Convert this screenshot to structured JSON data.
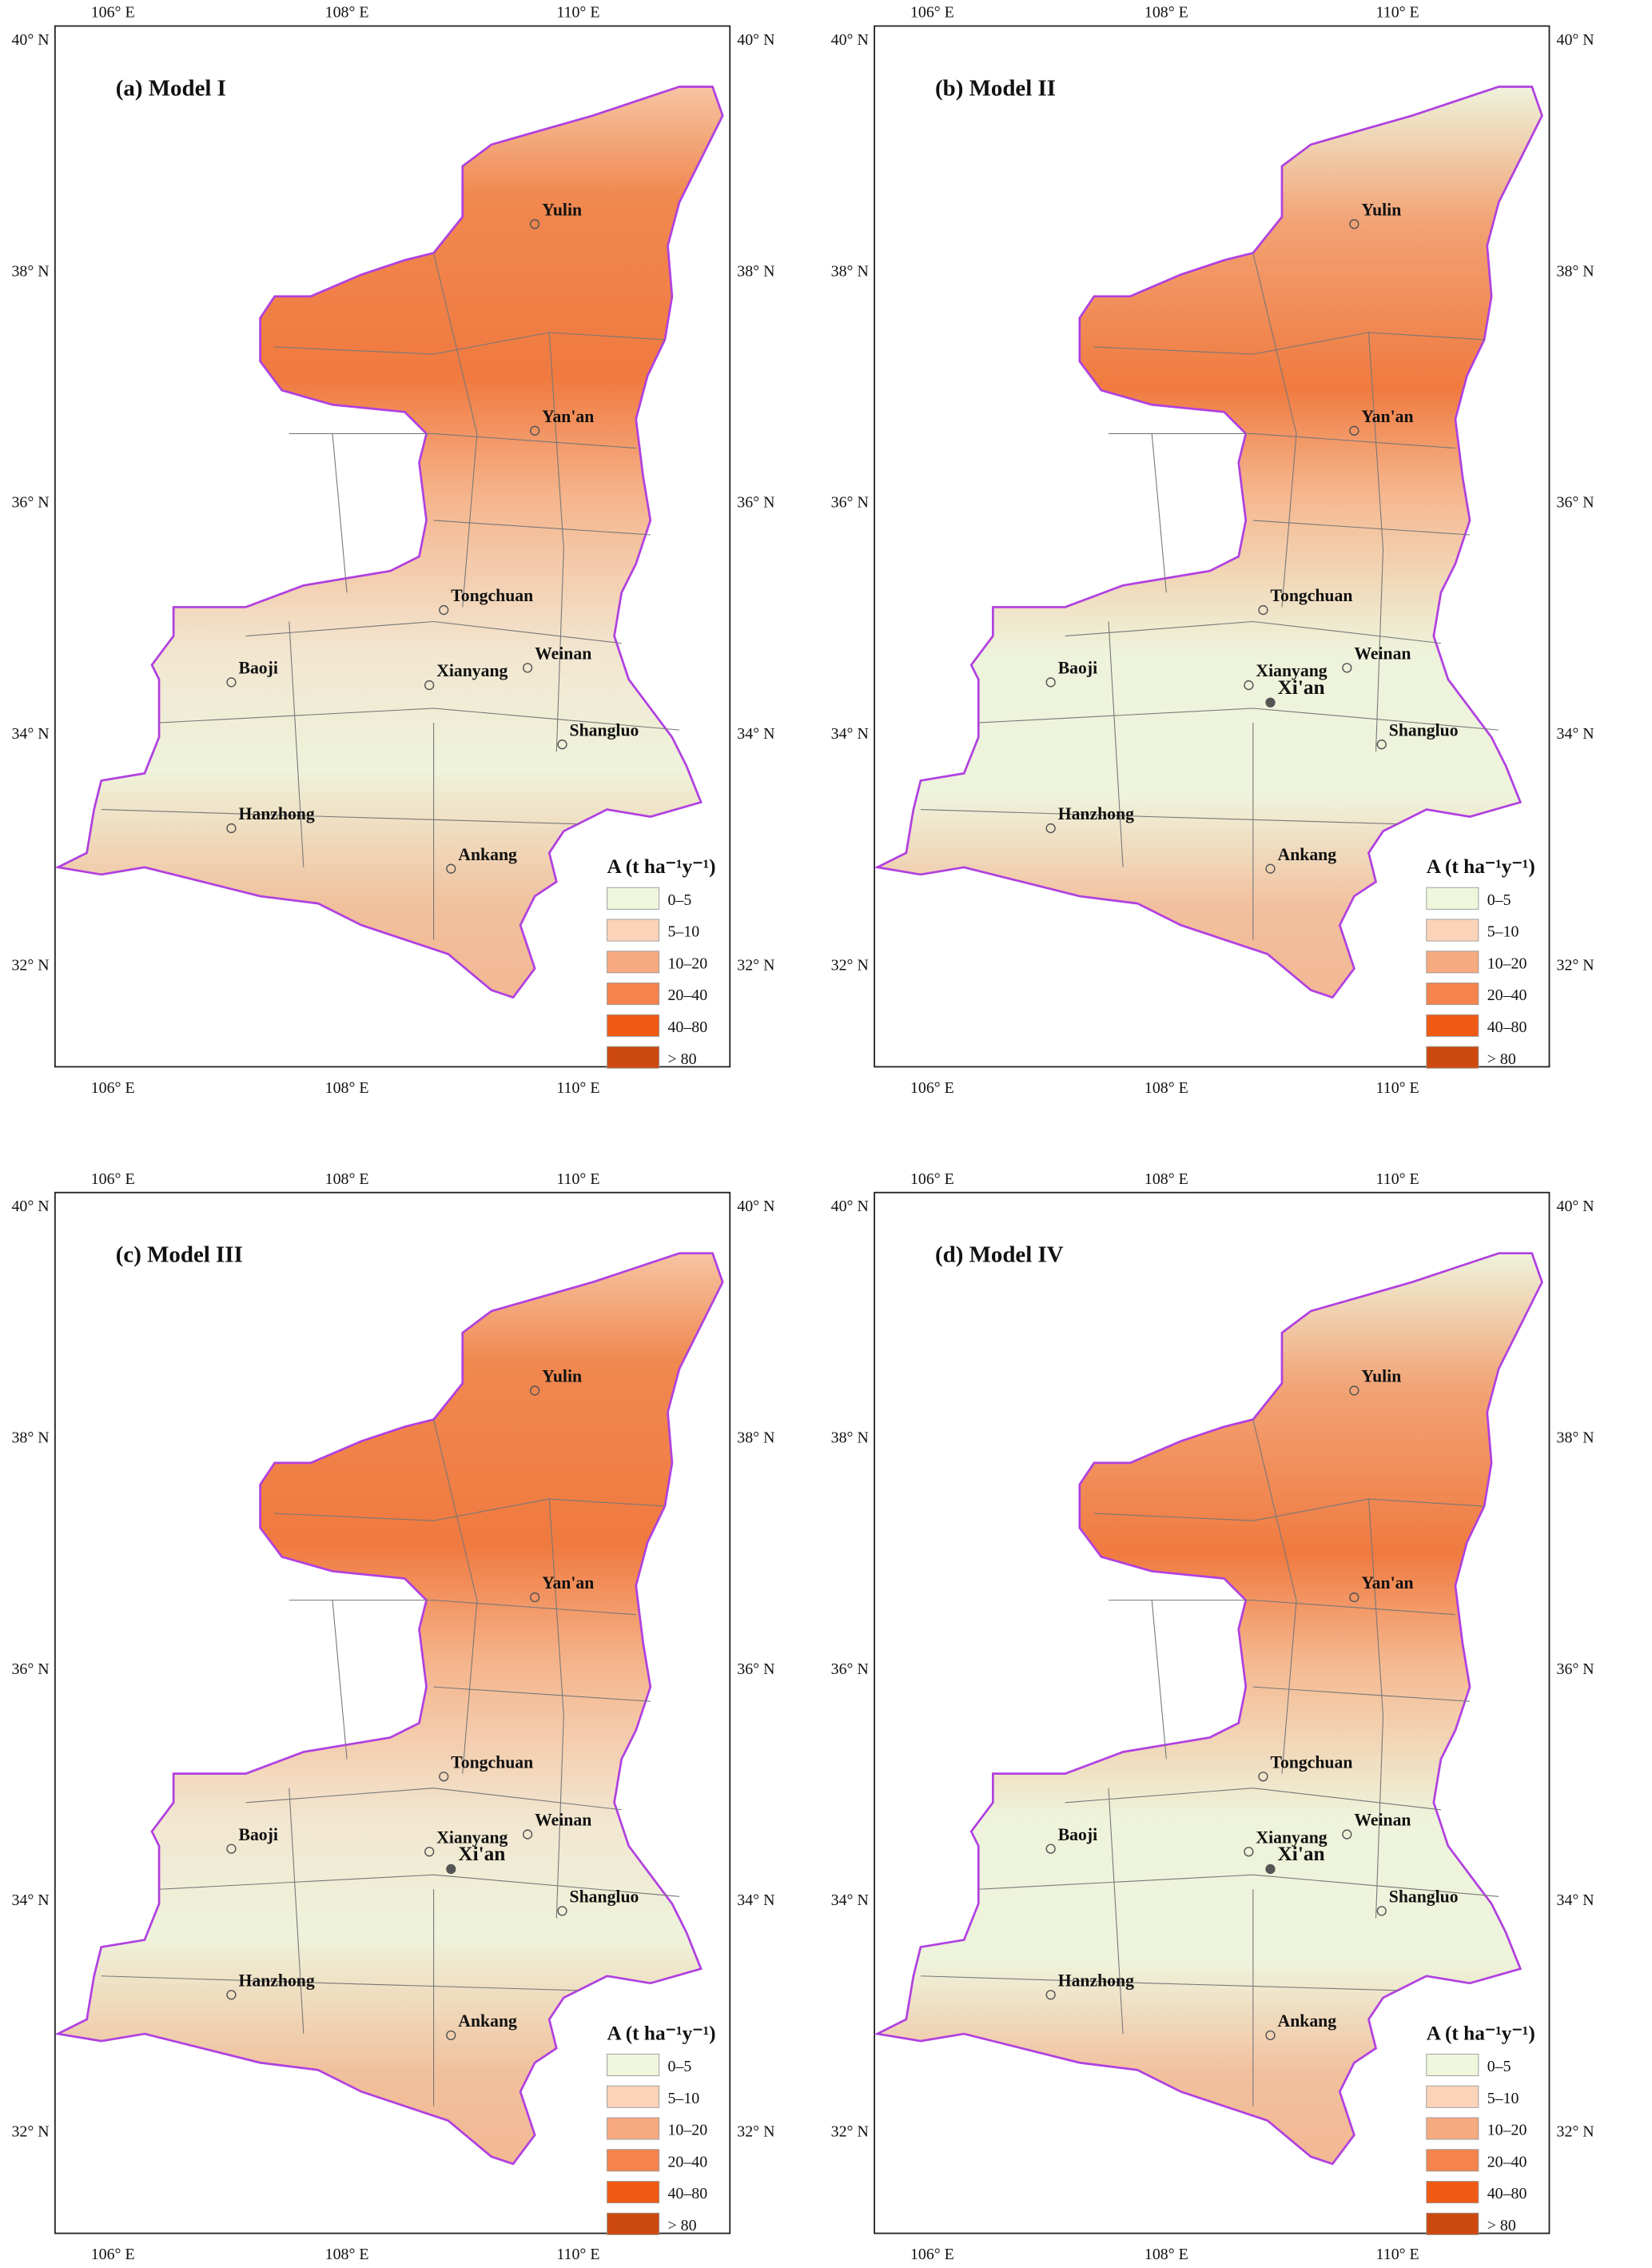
{
  "lon_labels": [
    "106° E",
    "108° E",
    "110° E"
  ],
  "lat_labels": [
    "40° N",
    "38° N",
    "36° N",
    "34° N",
    "32° N"
  ],
  "legend": {
    "title": "A (t ha⁻¹y⁻¹)",
    "items": [
      {
        "label": "0–5",
        "color": "#eef6dc"
      },
      {
        "label": "5–10",
        "color": "#fbd3b8"
      },
      {
        "label": "10–20",
        "color": "#f7aa80"
      },
      {
        "label": "20–40",
        "color": "#f4834d"
      },
      {
        "label": "40–80",
        "color": "#ef5a14"
      },
      {
        "label": "> 80",
        "color": "#cc4a10"
      }
    ]
  },
  "panels": [
    {
      "title": "(a) Model I",
      "cities": [
        "Yulin",
        "Yan'an",
        "Tongchuan",
        "Weinan",
        "Xianyang",
        "Baoji",
        "Shangluo",
        "Hanzhong",
        "Ankang"
      ]
    },
    {
      "title": "(b) Model II",
      "cities": [
        "Yulin",
        "Yan'an",
        "Tongchuan",
        "Weinan",
        "Xianyang",
        "Baoji",
        "Shangluo",
        "Hanzhong",
        "Ankang",
        "Xi'an"
      ]
    },
    {
      "title": "(c) Model III",
      "cities": [
        "Yulin",
        "Yan'an",
        "Tongchuan",
        "Weinan",
        "Xianyang",
        "Baoji",
        "Shangluo",
        "Hanzhong",
        "Ankang",
        "Xi'an"
      ]
    },
    {
      "title": "(d) Model IV",
      "cities": [
        "Yulin",
        "Yan'an",
        "Tongchuan",
        "Weinan",
        "Xianyang",
        "Baoji",
        "Shangluo",
        "Hanzhong",
        "Ankang",
        "Xi'an"
      ]
    }
  ]
}
